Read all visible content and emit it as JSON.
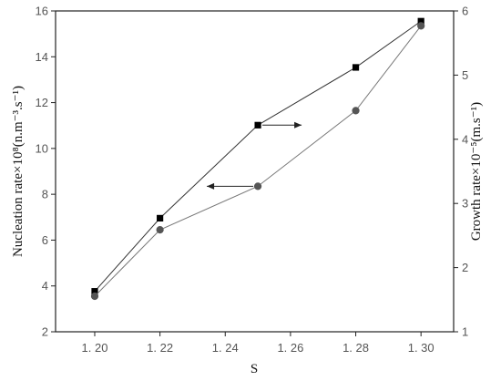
{
  "chart_data": {
    "type": "line",
    "xlabel": "S",
    "x": [
      1.2,
      1.22,
      1.25,
      1.28,
      1.3
    ],
    "x_tick_labels": [
      "1. 20",
      "1. 22",
      "1. 24",
      "1. 26",
      "1. 28",
      "1. 30"
    ],
    "x_ticks": [
      1.2,
      1.22,
      1.24,
      1.26,
      1.28,
      1.3
    ],
    "xlim": [
      1.188,
      1.31
    ],
    "ylabel_left": "Nucleation rate×10⁸(n.m⁻³.s⁻¹)",
    "ylim_left": [
      2,
      16
    ],
    "y_ticks_left": [
      2,
      4,
      6,
      8,
      10,
      12,
      14,
      16
    ],
    "ylabel_right": "Growth rate×10⁻⁵(m.s⁻¹)",
    "ylim_right": [
      1,
      6
    ],
    "y_ticks_right": [
      1,
      2,
      3,
      4,
      5,
      6
    ],
    "grid": false,
    "series": [
      {
        "axis": "right",
        "marker": "square",
        "color": "#000000",
        "values": [
          1.63,
          2.77,
          4.22,
          5.12,
          5.84
        ]
      },
      {
        "axis": "left",
        "marker": "circle",
        "color": "#555555",
        "values": [
          3.55,
          6.45,
          8.35,
          11.65,
          15.35
        ]
      }
    ],
    "annotations": [
      {
        "type": "arrow",
        "direction": "right",
        "series_index": 0,
        "x": 1.25
      },
      {
        "type": "arrow",
        "direction": "left",
        "series_index": 1,
        "x": 1.25
      }
    ]
  }
}
